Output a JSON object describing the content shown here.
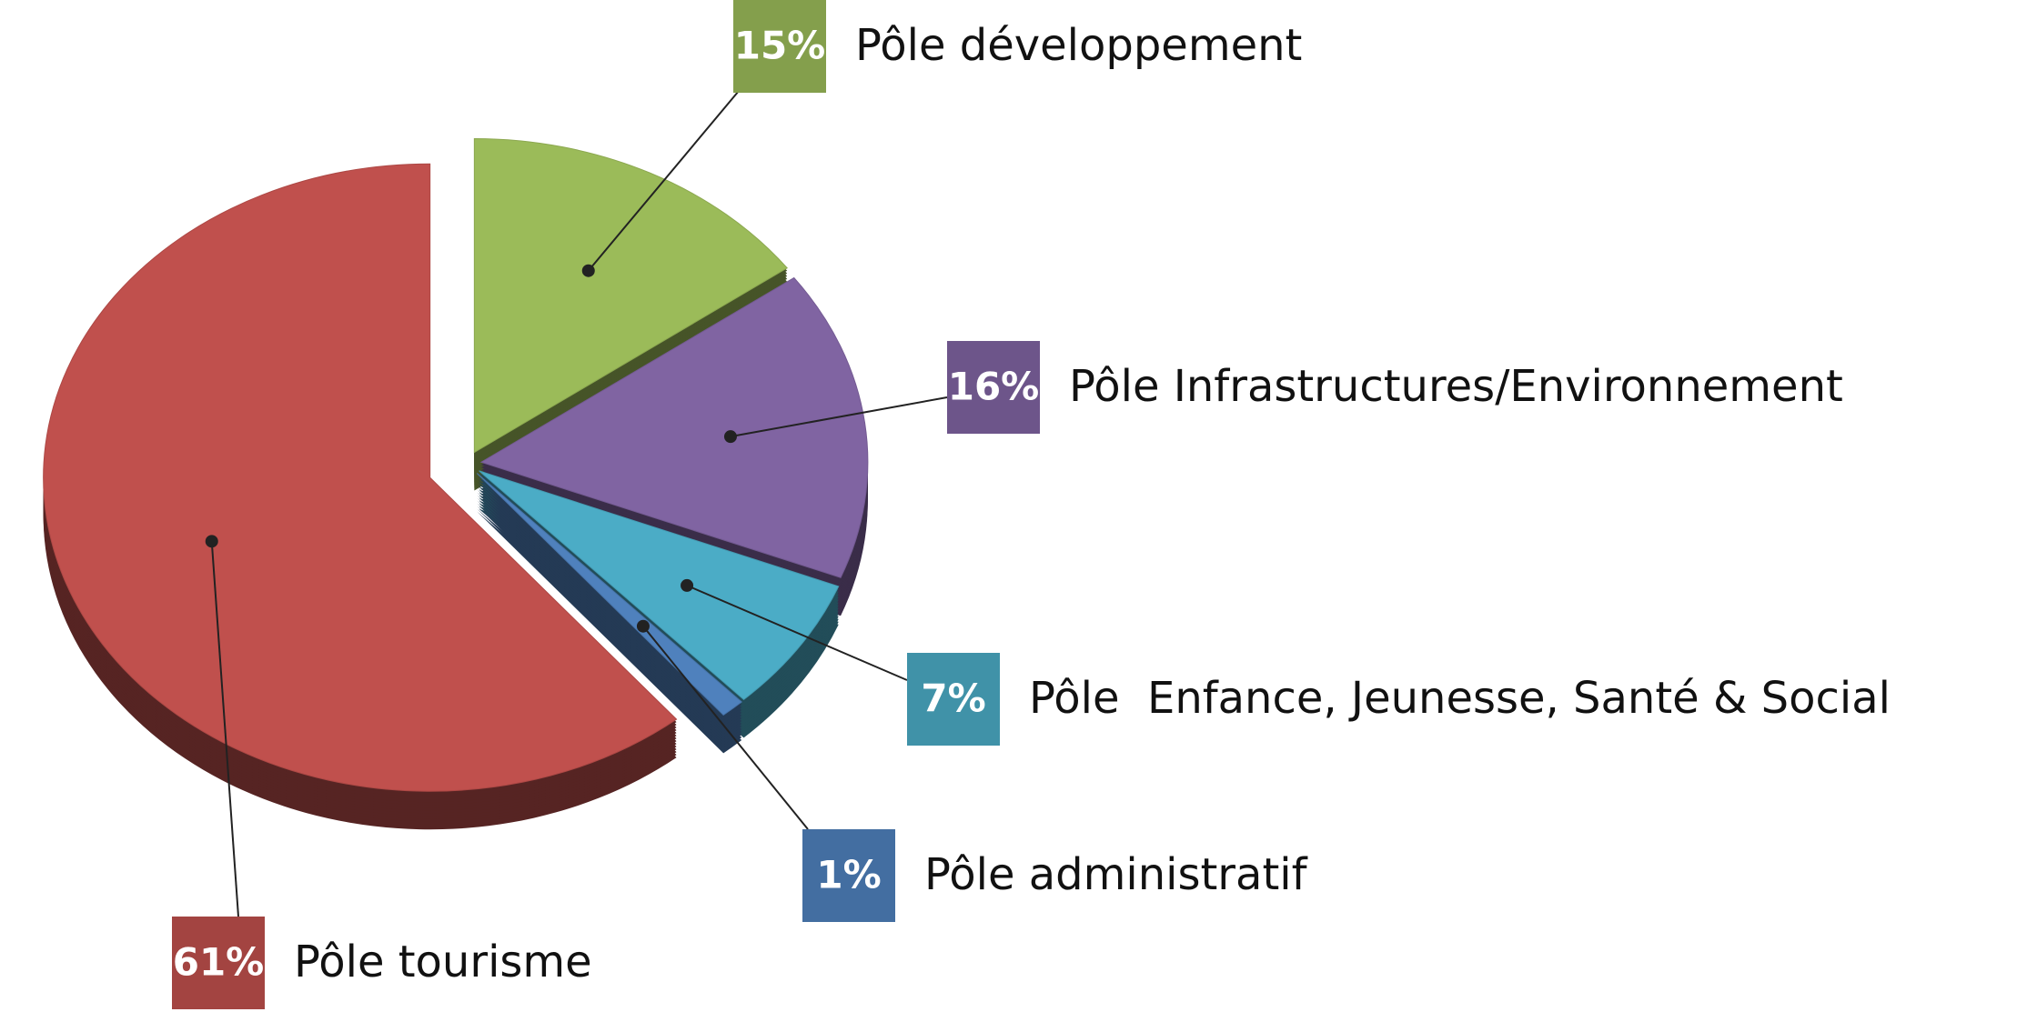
{
  "chart_data": {
    "type": "pie",
    "categories": [
      "Pôle développement",
      "Pôle Infrastructures/Environnement",
      "Pôle  Enfance, Jeunesse, Santé & Social",
      "Pôle administratif",
      "Pôle tourisme"
    ],
    "values": [
      15,
      16,
      7,
      1,
      61
    ],
    "value_labels": [
      "15%",
      "16%",
      "7%",
      "1%",
      "61%"
    ],
    "colors": [
      "#9bbb59",
      "#8064a2",
      "#4bacc6",
      "#4f81bd",
      "#c0504d"
    ]
  }
}
